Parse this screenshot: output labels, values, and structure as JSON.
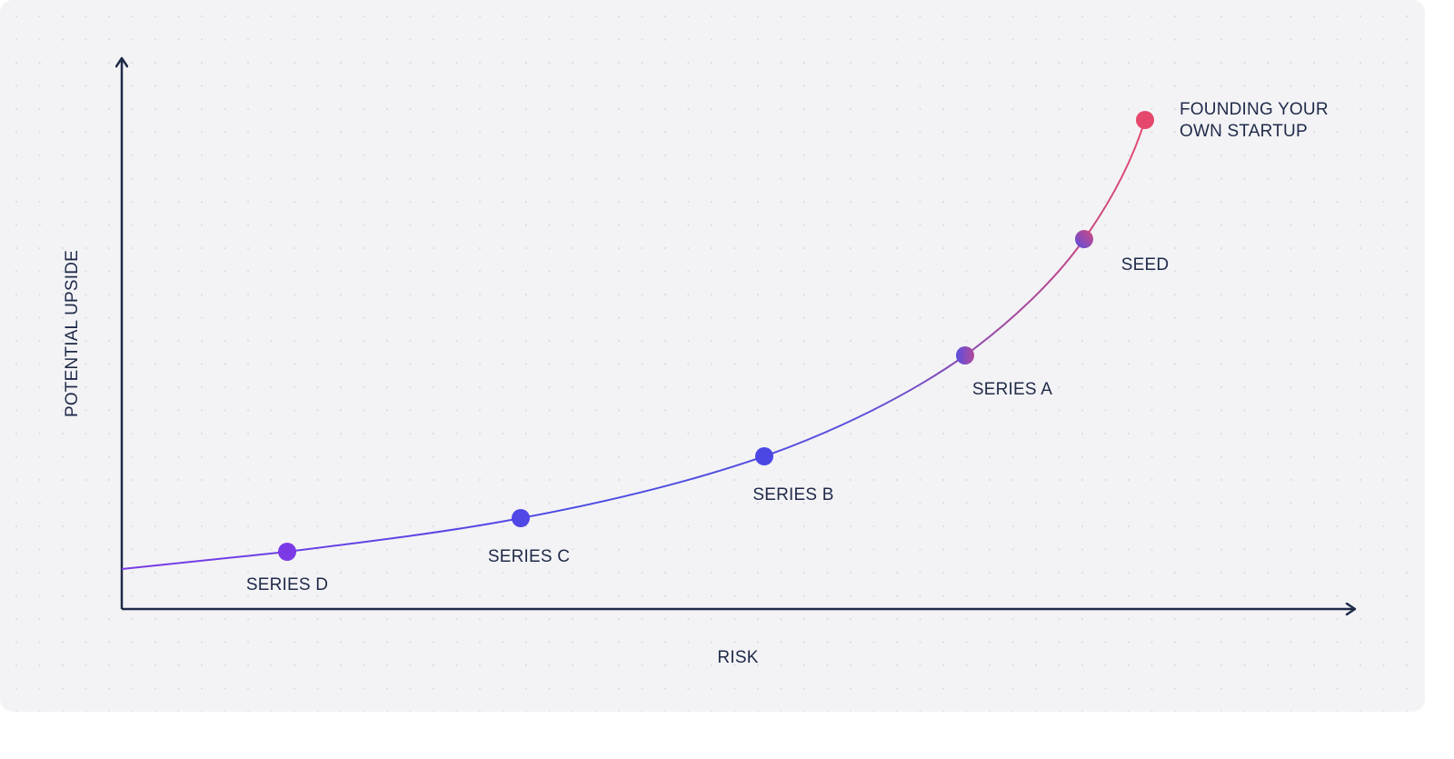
{
  "axes": {
    "y_label": "POTENTIAL UPSIDE",
    "x_label": "RISK"
  },
  "nodes": [
    {
      "label": "SERIES D"
    },
    {
      "label": "SERIES C"
    },
    {
      "label": "SERIES B"
    },
    {
      "label": "SERIES A"
    },
    {
      "label": "SEED"
    },
    {
      "label_lines": [
        "FOUNDING YOUR",
        "OWN STARTUP"
      ]
    }
  ]
}
